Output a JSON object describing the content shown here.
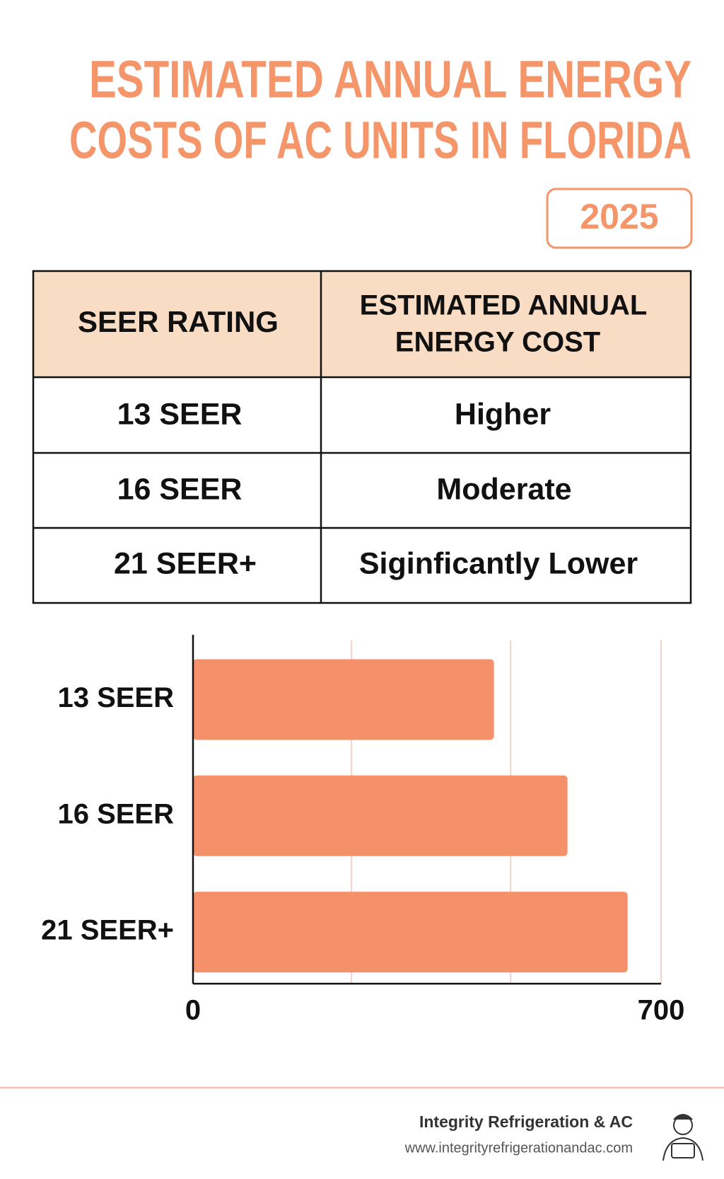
{
  "title": [
    "ESTIMATED ANNUAL ENERGY",
    "COSTS OF AC UNITS IN FLORIDA"
  ],
  "badge": "2025",
  "table": {
    "header": [
      "SEER RATING",
      [
        "ESTIMATED ANNUAL",
        "ENERGY COST"
      ]
    ],
    "rows": [
      [
        "13 SEER",
        "Higher"
      ],
      [
        "16 SEER",
        "Moderate"
      ],
      [
        "21 SEER+",
        "Siginficantly Lower"
      ]
    ]
  },
  "chart_data": {
    "type": "bar",
    "orientation": "horizontal",
    "categories": [
      "13 SEER",
      "16 SEER",
      "21 SEER+"
    ],
    "values": [
      450,
      560,
      650
    ],
    "color": "#f4916a",
    "xlim": [
      0,
      700
    ],
    "xticks": [
      0,
      700
    ],
    "xgrid": [
      237,
      475,
      700
    ]
  },
  "footer": {
    "company": "Integrity Refrigeration & AC",
    "url": "www.integrityrefrigerationandac.com"
  }
}
